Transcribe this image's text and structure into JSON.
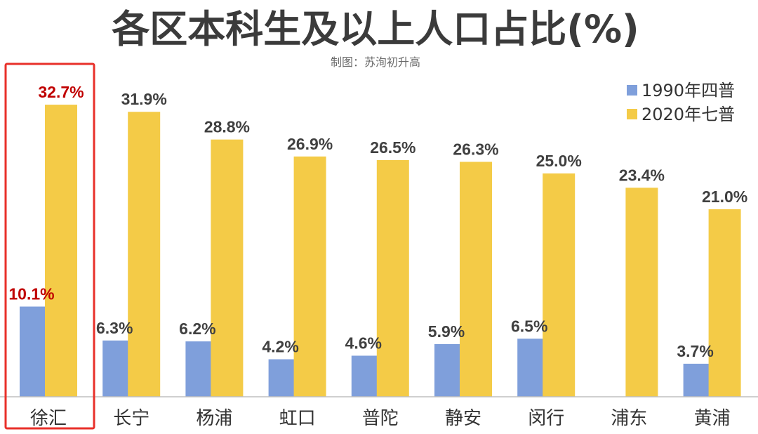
{
  "header": {
    "title": "各区本科生及以上人口占比(%)",
    "subtitle": "制图：苏洵初升高"
  },
  "colors": {
    "series_1990": "#7f9fdb",
    "series_2020": "#f4cb47",
    "highlight": "#c00000",
    "highlight_box": "#e8302a",
    "axis": "#bfbfbf"
  },
  "chart_data": {
    "type": "bar",
    "title": "各区本科生及以上人口占比(%)",
    "categories": [
      "徐汇",
      "长宁",
      "杨浦",
      "虹口",
      "普陀",
      "静安",
      "闵行",
      "浦东",
      "黄浦"
    ],
    "series": [
      {
        "name": "1990年四普",
        "values": [
          10.1,
          6.3,
          6.2,
          4.2,
          4.6,
          5.9,
          6.5,
          null,
          3.7
        ]
      },
      {
        "name": "2020年七普",
        "values": [
          32.7,
          31.9,
          28.8,
          26.9,
          26.5,
          26.3,
          25.0,
          23.4,
          21.0
        ]
      }
    ],
    "ylim": [
      0,
      37
    ],
    "grid": false,
    "legend": "top-right",
    "highlighted_category": "徐汇"
  }
}
